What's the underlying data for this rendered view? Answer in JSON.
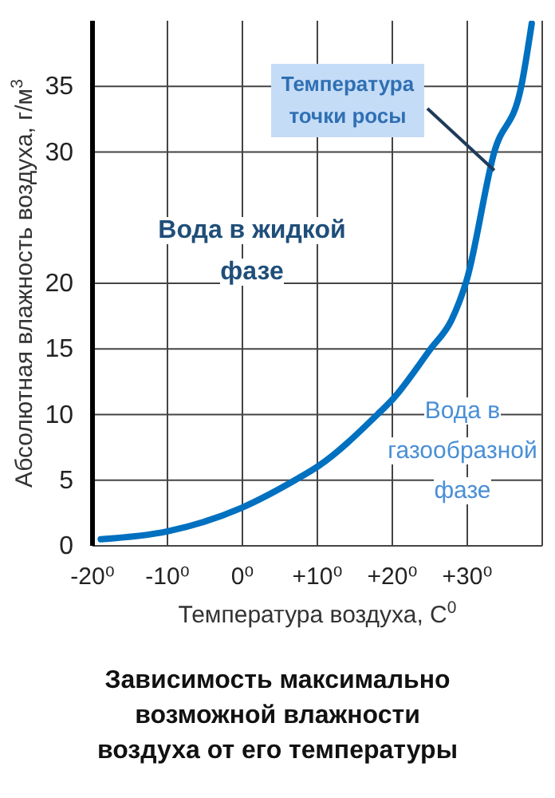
{
  "chart_data": {
    "type": "line",
    "title": "Зависимость максимально возможной влажности воздуха от его температуры",
    "xlabel": "Температура воздуха, С$^{0}$",
    "ylabel": "Абсолютная влажность воздуха, г/м$^{3}$",
    "x": [
      -18.9,
      -10,
      -0.1,
      7,
      10.2,
      18,
      20.1,
      25.1,
      27.9,
      29.9,
      33.6,
      37.2,
      38.6
    ],
    "series": [
      {
        "color": "#0070c0",
        "values": [
          0.5,
          1.1,
          2.9,
          5,
          6.1,
          10,
          11.2,
          15,
          17.2,
          20.2,
          30,
          35,
          39.8
        ]
      }
    ],
    "xlim": [
      -20,
      40
    ],
    "xticks": [
      {
        "value": -20,
        "label": "-20⁰"
      },
      {
        "value": -10,
        "label": "-10⁰"
      },
      {
        "value": 0,
        "label": "0⁰"
      },
      {
        "value": 10,
        "label": "+10⁰"
      },
      {
        "value": 20,
        "label": "+20⁰"
      },
      {
        "value": 30,
        "label": "+30⁰"
      },
      {
        "value": 40,
        "label": null
      }
    ],
    "ylim": [
      0,
      40
    ],
    "yticks": [
      0,
      5,
      10,
      15,
      20,
      30,
      35
    ],
    "grid": true,
    "marker": "none",
    "line_style": "solid",
    "legend": false,
    "annotations": [
      {
        "text": "Температура точки росы",
        "x": 33.6,
        "y": 28.6
      },
      "Вода в жидкой фазе",
      "Вода в газообразной фазе"
    ]
  }
}
